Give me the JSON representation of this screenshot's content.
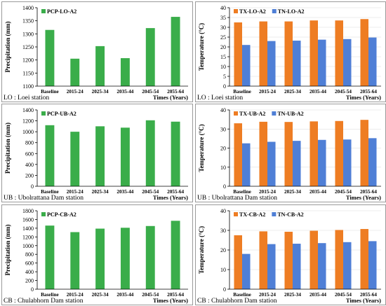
{
  "colors": {
    "pcp": "#3aad4a",
    "tx": "#ee7d23",
    "tn": "#4f7fd6"
  },
  "chart_data": [
    {
      "type": "bar",
      "categories": [
        "Baseline",
        "2015-24",
        "2025-34",
        "2035-44",
        "2045-54",
        "2055-64"
      ],
      "series": [
        {
          "name": "PCP-LO-A2",
          "values": [
            1315,
            1205,
            1253,
            1207,
            1322,
            1365
          ]
        }
      ],
      "ylabel": "Precipitation (mm)",
      "xlabel": "Times (Years)",
      "ylim": [
        1100,
        1400
      ],
      "yticks": [
        1100,
        1150,
        1200,
        1250,
        1300,
        1350,
        1400
      ],
      "station": "LO : Loei station",
      "grid": false,
      "legend": "top-left"
    },
    {
      "type": "bar",
      "categories": [
        "Baseline",
        "2015-24",
        "2025-34",
        "2035-44",
        "2045-54",
        "2055-64"
      ],
      "series": [
        {
          "name": "TX-LO-A2",
          "values": [
            32.5,
            33.0,
            33.0,
            33.5,
            33.5,
            34.2
          ]
        },
        {
          "name": "TN-LO-A2",
          "values": [
            21.0,
            23.0,
            23.2,
            23.7,
            24.0,
            24.8
          ]
        }
      ],
      "ylabel": "Temperature (°C)",
      "xlabel": "Times (Years)",
      "ylim": [
        0,
        40
      ],
      "yticks": [
        0,
        5,
        10,
        15,
        20,
        25,
        30,
        35,
        40
      ],
      "station": "LO : Loei station",
      "grid": true,
      "legend": "top-left"
    },
    {
      "type": "bar",
      "categories": [
        "Baseline",
        "2015-24",
        "2025-34",
        "2035-44",
        "2045-54",
        "2055-64"
      ],
      "series": [
        {
          "name": "PCP-UB-A2",
          "values": [
            1120,
            1000,
            1100,
            1075,
            1210,
            1185
          ]
        }
      ],
      "ylabel": "Precipitation (mm)",
      "xlabel": "Times (Years)",
      "ylim": [
        0,
        1400
      ],
      "yticks": [
        0,
        200,
        400,
        600,
        800,
        1000,
        1200,
        1400
      ],
      "station": "UB : Ubolrattana Dam station",
      "grid": false,
      "legend": "top-left"
    },
    {
      "type": "bar",
      "categories": [
        "Baseline",
        "2015-24",
        "2025-34",
        "2035-44",
        "2045-54",
        "2055-64"
      ],
      "series": [
        {
          "name": "TX-UB-A2",
          "values": [
            33.0,
            33.8,
            33.7,
            34.0,
            34.2,
            34.8
          ]
        },
        {
          "name": "TN-UB-A2",
          "values": [
            22.5,
            23.3,
            23.8,
            24.3,
            24.5,
            25.2
          ]
        }
      ],
      "ylabel": "Temperature (°C)",
      "xlabel": "Times (Years)",
      "ylim": [
        0,
        40
      ],
      "yticks": [
        0,
        10,
        20,
        30,
        40
      ],
      "station": "UB : Ubolrattana Dam station",
      "grid": true,
      "legend": "top-left"
    },
    {
      "type": "bar",
      "categories": [
        "Baseline",
        "2015-24",
        "2025-34",
        "2035-44",
        "2045-54",
        "2055-64"
      ],
      "series": [
        {
          "name": "PCP-CB-A2",
          "values": [
            1460,
            1310,
            1390,
            1410,
            1450,
            1570
          ]
        }
      ],
      "ylabel": "Precipitation (mm)",
      "xlabel": "Times (Years)",
      "ylim": [
        0,
        1800
      ],
      "yticks": [
        0,
        200,
        400,
        600,
        800,
        1000,
        1200,
        1400,
        1600,
        1800
      ],
      "station": "CB : Chulabhorn Dam station",
      "grid": false,
      "legend": "top-left"
    },
    {
      "type": "bar",
      "categories": [
        "Baseline",
        "2015-24",
        "2025-34",
        "2035-44",
        "2045-54",
        "2055-64"
      ],
      "series": [
        {
          "name": "TX-CB-A2",
          "values": [
            27.5,
            29.5,
            29.3,
            29.8,
            30.2,
            30.7
          ]
        },
        {
          "name": "TN-CB-A2",
          "values": [
            18.0,
            23.0,
            23.2,
            23.5,
            24.0,
            24.5
          ]
        }
      ],
      "ylabel": "Temperature (°C)",
      "xlabel": "Times (Years)",
      "ylim": [
        0,
        40
      ],
      "yticks": [
        0,
        10,
        20,
        30,
        40
      ],
      "station": "CB : Chulabhorn Dam station",
      "grid": true,
      "legend": "top-left"
    }
  ]
}
